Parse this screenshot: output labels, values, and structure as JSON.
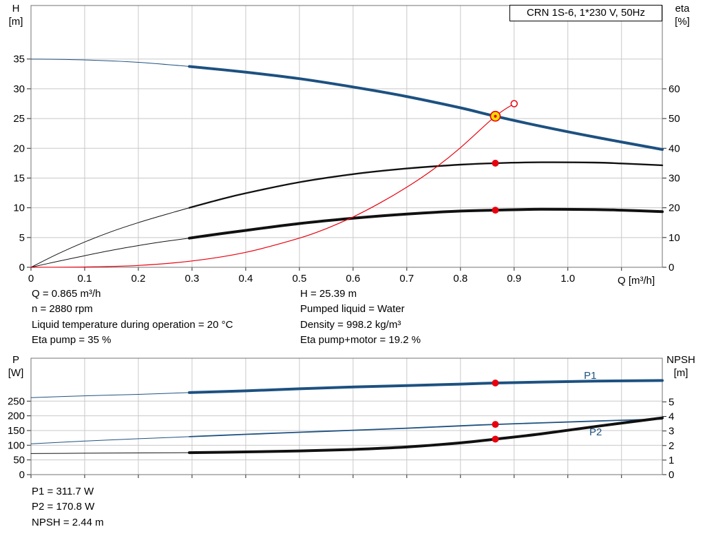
{
  "title_box": {
    "label": "CRN 1S-6, 1*230 V, 50Hz"
  },
  "colors": {
    "curve_blue": "#1d5180",
    "curve_black": "#111111",
    "curve_red": "#e8000d",
    "duty_fill": "#ffdc00",
    "grid": "#c8c8c8",
    "frame": "#707070"
  },
  "info": {
    "left": [
      "Q = 0.865 m³/h",
      "n = 2880 rpm",
      "Liquid temperature during operation = 20 °C",
      "Eta pump = 35 %"
    ],
    "right": [
      "H = 25.39 m",
      "Pumped liquid = Water",
      "Density = 998.2 kg/m³",
      "Eta pump+motor = 19.2 %"
    ],
    "bottom": [
      "P1 = 311.7 W",
      "P2 = 170.8 W",
      "NPSH = 2.44 m"
    ]
  },
  "chart_data": [
    {
      "type": "line",
      "name": "hq-eta-chart",
      "title": "CRN 1S-6, 1*230 V, 50Hz",
      "x_axis": {
        "label": "Q [m³/h]",
        "min": 0,
        "max": 1.176,
        "ticks": [
          {
            "v": 0,
            "label": "0"
          },
          {
            "v": 0.1,
            "label": "0.1"
          },
          {
            "v": 0.2,
            "label": "0.2"
          },
          {
            "v": 0.3,
            "label": "0.3"
          },
          {
            "v": 0.4,
            "label": "0.4"
          },
          {
            "v": 0.5,
            "label": "0.5"
          },
          {
            "v": 0.6,
            "label": "0.6"
          },
          {
            "v": 0.7,
            "label": "0.7"
          },
          {
            "v": 0.8,
            "label": "0.8"
          },
          {
            "v": 0.9,
            "label": "0.9"
          },
          {
            "v": 1.0,
            "label": "1.0"
          },
          {
            "v": 1.1,
            "label": ""
          }
        ]
      },
      "y_left": {
        "name": "H",
        "unit": "[m]",
        "min": 0,
        "max": 44,
        "ticks": [
          0,
          5,
          10,
          15,
          20,
          25,
          30,
          35
        ]
      },
      "y_right": {
        "name": "eta",
        "unit": "[%]",
        "min": 0,
        "max": 88,
        "ticks": [
          0,
          10,
          20,
          30,
          40,
          50,
          60
        ]
      },
      "series": [
        {
          "name": "eta-pump-curve",
          "axis": "right",
          "color": "#111111",
          "width": 2.4,
          "thin_until": 0.295,
          "thin_width": 1,
          "points": [
            [
              0,
              0
            ],
            [
              0.05,
              4.5
            ],
            [
              0.1,
              8.5
            ],
            [
              0.15,
              12
            ],
            [
              0.2,
              15
            ],
            [
              0.25,
              17.7
            ],
            [
              0.295,
              20
            ],
            [
              0.35,
              22.7
            ],
            [
              0.4,
              24.9
            ],
            [
              0.5,
              28.6
            ],
            [
              0.6,
              31.3
            ],
            [
              0.7,
              33.2
            ],
            [
              0.8,
              34.5
            ],
            [
              0.865,
              35
            ],
            [
              0.95,
              35.3
            ],
            [
              1.05,
              35.2
            ],
            [
              1.1,
              34.9
            ],
            [
              1.176,
              34.3
            ]
          ]
        },
        {
          "name": "eta-pump-motor-curve",
          "axis": "right",
          "color": "#111111",
          "width": 4,
          "thin_until": 0.295,
          "thin_width": 1,
          "points": [
            [
              0,
              0
            ],
            [
              0.05,
              2
            ],
            [
              0.1,
              3.9
            ],
            [
              0.15,
              5.7
            ],
            [
              0.2,
              7.3
            ],
            [
              0.25,
              8.7
            ],
            [
              0.295,
              9.8
            ],
            [
              0.35,
              11.2
            ],
            [
              0.4,
              12.4
            ],
            [
              0.5,
              14.7
            ],
            [
              0.6,
              16.5
            ],
            [
              0.7,
              17.9
            ],
            [
              0.8,
              18.9
            ],
            [
              0.865,
              19.2
            ],
            [
              0.95,
              19.5
            ],
            [
              1.05,
              19.4
            ],
            [
              1.1,
              19.2
            ],
            [
              1.176,
              18.7
            ]
          ]
        },
        {
          "name": "duty-system-curve",
          "axis": "left",
          "color": "#e8000d",
          "width": 1.2,
          "points": [
            [
              0,
              0
            ],
            [
              0.1,
              0.05
            ],
            [
              0.2,
              0.31
            ],
            [
              0.3,
              1.06
            ],
            [
              0.4,
              2.51
            ],
            [
              0.5,
              4.9
            ],
            [
              0.55,
              6.5
            ],
            [
              0.6,
              8.47
            ],
            [
              0.65,
              10.8
            ],
            [
              0.7,
              13.45
            ],
            [
              0.75,
              16.5
            ],
            [
              0.8,
              20.1
            ],
            [
              0.865,
              25.39
            ],
            [
              0.9,
              27.5
            ]
          ]
        },
        {
          "name": "head-curve",
          "axis": "left",
          "color": "#1d5180",
          "width": 4,
          "thin_until": 0.295,
          "thin_width": 1,
          "points": [
            [
              0,
              35.0
            ],
            [
              0.1,
              34.85
            ],
            [
              0.2,
              34.45
            ],
            [
              0.295,
              33.75
            ],
            [
              0.4,
              32.8
            ],
            [
              0.5,
              31.7
            ],
            [
              0.6,
              30.3
            ],
            [
              0.7,
              28.7
            ],
            [
              0.8,
              26.8
            ],
            [
              0.865,
              25.39
            ],
            [
              0.95,
              23.7
            ],
            [
              1.05,
              21.9
            ],
            [
              1.176,
              19.8
            ]
          ]
        }
      ],
      "markers": [
        {
          "kind": "dot",
          "name": "eta-pump-point",
          "x": 0.865,
          "value": 35,
          "axis": "right",
          "color": "#e8000d",
          "r": 5
        },
        {
          "kind": "dot",
          "name": "eta-pump-motor-point",
          "x": 0.865,
          "value": 19.2,
          "axis": "right",
          "color": "#e8000d",
          "r": 5
        },
        {
          "kind": "open-circle",
          "name": "system-curve-end-point",
          "x": 0.9,
          "value": 27.5,
          "axis": "left",
          "color": "#e8000d",
          "r": 4.5
        },
        {
          "kind": "duty-point",
          "name": "duty-point",
          "x": 0.865,
          "value": 25.39,
          "axis": "left",
          "fill": "#ffdc00",
          "stroke": "#e8000d",
          "r": 7
        }
      ],
      "labels": []
    },
    {
      "type": "line",
      "name": "power-npsh-chart",
      "x_axis": {
        "label": "",
        "min": 0,
        "max": 1.176,
        "ticks": [
          {
            "v": 0
          },
          {
            "v": 0.1
          },
          {
            "v": 0.2
          },
          {
            "v": 0.3
          },
          {
            "v": 0.4
          },
          {
            "v": 0.5
          },
          {
            "v": 0.6
          },
          {
            "v": 0.7
          },
          {
            "v": 0.8
          },
          {
            "v": 0.9
          },
          {
            "v": 1.0
          },
          {
            "v": 1.1
          }
        ]
      },
      "y_left": {
        "name": "P",
        "unit": "[W]",
        "min": 0,
        "max": 396,
        "ticks": [
          0,
          50,
          100,
          150,
          200,
          250
        ]
      },
      "y_right": {
        "name": "NPSH",
        "unit": "[m]",
        "min": 0,
        "max": 8,
        "ticks": [
          0,
          1,
          2,
          3,
          4,
          5
        ]
      },
      "series": [
        {
          "name": "p2-power-curve",
          "axis": "left",
          "color": "#1d5180",
          "width": 1.8,
          "thin_until": 0.295,
          "thin_width": 1,
          "points": [
            [
              0,
              105
            ],
            [
              0.1,
              114
            ],
            [
              0.2,
              122
            ],
            [
              0.295,
              129
            ],
            [
              0.4,
              137
            ],
            [
              0.5,
              144
            ],
            [
              0.6,
              151
            ],
            [
              0.7,
              158
            ],
            [
              0.8,
              166
            ],
            [
              0.865,
              170.8
            ],
            [
              0.95,
              176
            ],
            [
              1.05,
              182
            ],
            [
              1.176,
              189
            ]
          ]
        },
        {
          "name": "p1-power-curve",
          "axis": "left",
          "color": "#1d5180",
          "width": 4,
          "thin_until": 0.295,
          "thin_width": 1,
          "points": [
            [
              0,
              262
            ],
            [
              0.1,
              268
            ],
            [
              0.2,
              273
            ],
            [
              0.295,
              279
            ],
            [
              0.4,
              285
            ],
            [
              0.5,
              292
            ],
            [
              0.6,
              298
            ],
            [
              0.7,
              303
            ],
            [
              0.8,
              308
            ],
            [
              0.865,
              311.7
            ],
            [
              0.95,
              315
            ],
            [
              1.05,
              318
            ],
            [
              1.176,
              320
            ]
          ]
        },
        {
          "name": "npsh-curve",
          "axis": "right",
          "color": "#111111",
          "width": 4,
          "thin_until": 0.295,
          "thin_width": 1,
          "points": [
            [
              0,
              1.45
            ],
            [
              0.1,
              1.47
            ],
            [
              0.2,
              1.49
            ],
            [
              0.295,
              1.51
            ],
            [
              0.4,
              1.56
            ],
            [
              0.5,
              1.63
            ],
            [
              0.6,
              1.73
            ],
            [
              0.7,
              1.9
            ],
            [
              0.8,
              2.18
            ],
            [
              0.865,
              2.44
            ],
            [
              0.95,
              2.8
            ],
            [
              1.05,
              3.3
            ],
            [
              1.176,
              3.9
            ]
          ]
        }
      ],
      "markers": [
        {
          "kind": "dot",
          "name": "p1-point",
          "x": 0.865,
          "value": 311.7,
          "axis": "left",
          "color": "#e8000d",
          "r": 5
        },
        {
          "kind": "dot",
          "name": "p2-point",
          "x": 0.865,
          "value": 170.8,
          "axis": "left",
          "color": "#e8000d",
          "r": 5
        },
        {
          "kind": "dot",
          "name": "npsh-point",
          "x": 0.865,
          "value": 2.44,
          "axis": "right",
          "color": "#e8000d",
          "r": 5
        }
      ],
      "labels": [
        {
          "text": "P1",
          "x": 1.03,
          "value": 326,
          "axis": "left",
          "color": "#1d5180"
        },
        {
          "text": "P2",
          "x": 1.04,
          "value": 134,
          "axis": "left",
          "color": "#1d5180"
        }
      ]
    }
  ]
}
